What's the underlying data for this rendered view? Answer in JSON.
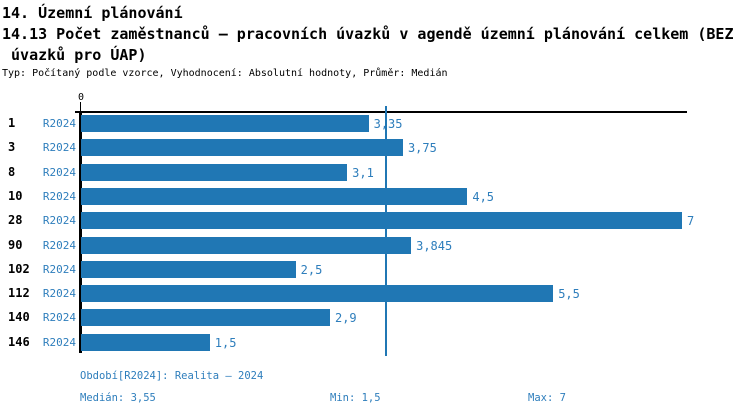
{
  "header": {
    "title_line1": "14. Územní plánování",
    "title_line2": "14.13 Počet zaměstnanců – pracovních úvazků v agendě územní plánování celkem (BEZ",
    "title_line3": " úvazků pro ÚAP)",
    "subtitle": "Typ: Počítaný podle vzorce, Vyhodnocení: Absolutní hodnoty, Průměr: Medián"
  },
  "chart_data": {
    "type": "bar",
    "orientation": "horizontal",
    "title": "14.13 Počet zaměstnanců – pracovních úvazků v agendě územní plánování celkem (BEZ úvazků pro ÚAP)",
    "categories": [
      "1",
      "3",
      "8",
      "10",
      "28",
      "90",
      "102",
      "112",
      "140",
      "146"
    ],
    "series": [
      {
        "name": "R2024",
        "values": [
          3.35,
          3.75,
          3.1,
          4.5,
          7,
          3.845,
          2.5,
          5.5,
          2.9,
          1.5
        ],
        "value_labels": [
          "3,35",
          "3,75",
          "3,1",
          "4,5",
          "7",
          "3,845",
          "2,5",
          "5,5",
          "2,9",
          "1,5"
        ]
      }
    ],
    "xlabel": "",
    "ylabel": "",
    "xlim": [
      0,
      7
    ],
    "x_tick_labels": [
      "0"
    ],
    "grid": false,
    "legend_position": "none",
    "median_value": 3.55,
    "bar_color": "#2077B4",
    "median_line_color": "#2077B4",
    "label_color": "#2E7EBC"
  },
  "axis": {
    "zero_label": "0"
  },
  "footer": {
    "period": "Období[R2024]: Realita – 2024",
    "median": "Medián: 3,55",
    "min": "Min: 1,5",
    "max": "Max: 7"
  },
  "colors": {
    "bar": "#2077B4",
    "blue_text": "#2E7EBC",
    "axis": "#000000",
    "background": "#FFFFFF"
  }
}
